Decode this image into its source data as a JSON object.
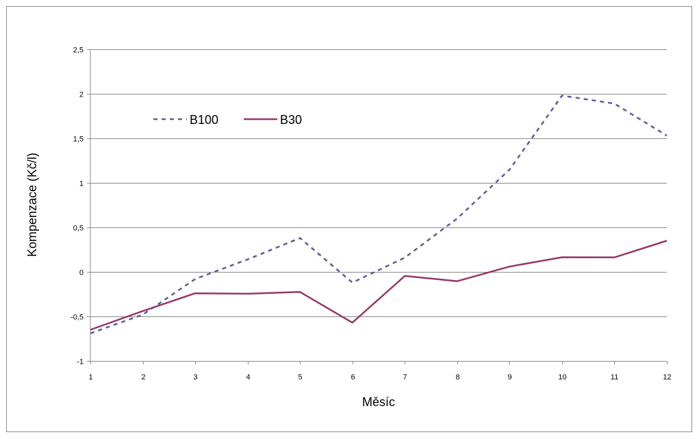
{
  "chart_data": {
    "type": "line",
    "x": [
      1,
      2,
      3,
      4,
      5,
      6,
      7,
      8,
      9,
      10,
      11,
      12
    ],
    "series": [
      {
        "name": "B100",
        "style": "dashed",
        "color": "#5b5b96",
        "values": [
          -0.69,
          -0.48,
          -0.08,
          0.14,
          0.38,
          -0.12,
          0.16,
          0.6,
          1.15,
          1.98,
          1.89,
          1.53
        ]
      },
      {
        "name": "B30",
        "style": "solid",
        "color": "#953865",
        "values": [
          -0.65,
          -0.44,
          -0.24,
          -0.245,
          -0.225,
          -0.57,
          -0.045,
          -0.105,
          0.06,
          0.165,
          0.163,
          0.35
        ]
      }
    ],
    "x_ticks": [
      "1",
      "2",
      "3",
      "4",
      "5",
      "6",
      "7",
      "8",
      "9",
      "10",
      "11",
      "12"
    ],
    "y_ticks": [
      "2,5",
      "2",
      "1,5",
      "1",
      "0,5",
      "0",
      "-0,5",
      "-1"
    ],
    "y_tick_values": [
      2.5,
      2,
      1.5,
      1,
      0.5,
      0,
      -0.5,
      -1
    ],
    "xlabel": "Měsíc",
    "ylabel": "Kompenzace  (Kč/l)",
    "xlim": [
      1,
      12
    ],
    "ylim": [
      -1,
      2.5
    ],
    "grid": "horizontal",
    "legend": "top-left"
  }
}
